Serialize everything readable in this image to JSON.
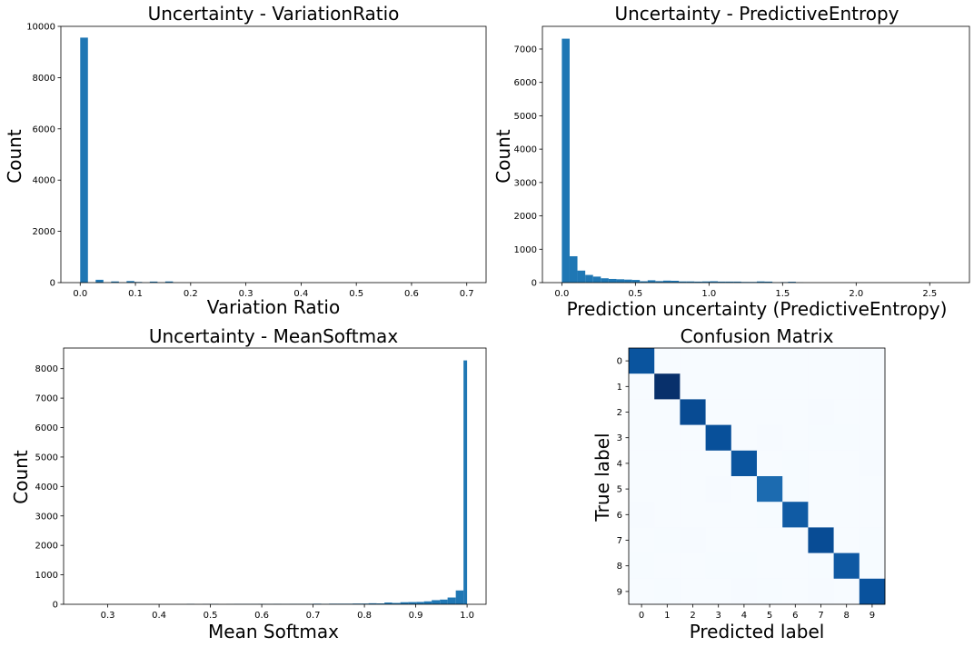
{
  "chart_data": [
    {
      "type": "bar",
      "title": "Uncertainty - VariationRatio",
      "xlabel": "Variation Ratio",
      "ylabel": "Count",
      "xlim": [
        -0.035,
        0.735
      ],
      "ylim": [
        0,
        10000
      ],
      "xticks": [
        0.0,
        0.1,
        0.2,
        0.3,
        0.4,
        0.5,
        0.6,
        0.7
      ],
      "xtick_labels": [
        "0.0",
        "0.1",
        "0.2",
        "0.3",
        "0.4",
        "0.5",
        "0.6",
        "0.7"
      ],
      "yticks": [
        0,
        2000,
        4000,
        6000,
        8000,
        10000
      ],
      "ytick_labels": [
        "0",
        "2000",
        "4000",
        "6000",
        "8000",
        "10000"
      ],
      "bins": [
        {
          "x0": 0.0,
          "x1": 0.014,
          "count": 9560
        },
        {
          "x0": 0.028,
          "x1": 0.042,
          "count": 110
        },
        {
          "x0": 0.056,
          "x1": 0.07,
          "count": 45
        },
        {
          "x0": 0.084,
          "x1": 0.098,
          "count": 60
        },
        {
          "x0": 0.098,
          "x1": 0.112,
          "count": 25
        },
        {
          "x0": 0.126,
          "x1": 0.14,
          "count": 40
        },
        {
          "x0": 0.154,
          "x1": 0.168,
          "count": 45
        }
      ]
    },
    {
      "type": "bar",
      "title": "Uncertainty - PredictiveEntropy",
      "xlabel": "Prediction uncertainty (PredictiveEntropy)",
      "ylabel": "Count",
      "xlim": [
        -0.132,
        2.77
      ],
      "ylim": [
        0,
        7680
      ],
      "xticks": [
        0.0,
        0.5,
        1.0,
        1.5,
        2.0,
        2.5
      ],
      "xtick_labels": [
        "0.0",
        "0.5",
        "1.0",
        "1.5",
        "2.0",
        "2.5"
      ],
      "yticks": [
        0,
        1000,
        2000,
        3000,
        4000,
        5000,
        6000,
        7000
      ],
      "ytick_labels": [
        "0",
        "1000",
        "2000",
        "3000",
        "4000",
        "5000",
        "6000",
        "7000"
      ],
      "bins": [
        {
          "x0": 0.0,
          "x1": 0.053,
          "count": 7310
        },
        {
          "x0": 0.053,
          "x1": 0.106,
          "count": 790
        },
        {
          "x0": 0.106,
          "x1": 0.159,
          "count": 360
        },
        {
          "x0": 0.159,
          "x1": 0.212,
          "count": 230
        },
        {
          "x0": 0.212,
          "x1": 0.265,
          "count": 180
        },
        {
          "x0": 0.265,
          "x1": 0.318,
          "count": 130
        },
        {
          "x0": 0.318,
          "x1": 0.371,
          "count": 110
        },
        {
          "x0": 0.371,
          "x1": 0.424,
          "count": 100
        },
        {
          "x0": 0.424,
          "x1": 0.477,
          "count": 90
        },
        {
          "x0": 0.477,
          "x1": 0.53,
          "count": 80
        },
        {
          "x0": 0.53,
          "x1": 0.583,
          "count": 40
        },
        {
          "x0": 0.583,
          "x1": 0.636,
          "count": 70
        },
        {
          "x0": 0.636,
          "x1": 0.689,
          "count": 45
        },
        {
          "x0": 0.689,
          "x1": 0.742,
          "count": 60
        },
        {
          "x0": 0.742,
          "x1": 0.795,
          "count": 55
        },
        {
          "x0": 0.795,
          "x1": 0.848,
          "count": 35
        },
        {
          "x0": 0.848,
          "x1": 0.901,
          "count": 35
        },
        {
          "x0": 0.901,
          "x1": 0.954,
          "count": 30
        },
        {
          "x0": 0.954,
          "x1": 1.007,
          "count": 35
        },
        {
          "x0": 1.007,
          "x1": 1.06,
          "count": 40
        },
        {
          "x0": 1.06,
          "x1": 1.113,
          "count": 30
        },
        {
          "x0": 1.113,
          "x1": 1.166,
          "count": 30
        },
        {
          "x0": 1.166,
          "x1": 1.219,
          "count": 30
        },
        {
          "x0": 1.219,
          "x1": 1.272,
          "count": 20
        },
        {
          "x0": 1.272,
          "x1": 1.325,
          "count": 20
        },
        {
          "x0": 1.325,
          "x1": 1.378,
          "count": 35
        },
        {
          "x0": 1.378,
          "x1": 1.431,
          "count": 30
        },
        {
          "x0": 1.431,
          "x1": 1.484,
          "count": 5
        },
        {
          "x0": 1.484,
          "x1": 1.537,
          "count": 15
        },
        {
          "x0": 1.537,
          "x1": 1.59,
          "count": 25
        },
        {
          "x0": 1.59,
          "x1": 1.643,
          "count": 5
        }
      ]
    },
    {
      "type": "bar",
      "title": "Uncertainty - MeanSoftmax",
      "xlabel": "Mean Softmax",
      "ylabel": "Count",
      "xlim": [
        0.214,
        1.037
      ],
      "ylim": [
        0,
        8700
      ],
      "xticks": [
        0.3,
        0.4,
        0.5,
        0.6,
        0.7,
        0.8,
        0.9,
        1.0
      ],
      "xtick_labels": [
        "0.3",
        "0.4",
        "0.5",
        "0.6",
        "0.7",
        "0.8",
        "0.9",
        "1.0"
      ],
      "yticks": [
        0,
        1000,
        2000,
        3000,
        4000,
        5000,
        6000,
        7000,
        8000
      ],
      "ytick_labels": [
        "0",
        "1000",
        "2000",
        "3000",
        "4000",
        "5000",
        "6000",
        "7000",
        "8000"
      ],
      "bins": [
        {
          "x0": 0.454,
          "x1": 0.469,
          "count": 10
        },
        {
          "x0": 0.485,
          "x1": 0.5,
          "count": 8
        },
        {
          "x0": 0.5,
          "x1": 0.516,
          "count": 10
        },
        {
          "x0": 0.531,
          "x1": 0.546,
          "count": 5
        },
        {
          "x0": 0.546,
          "x1": 0.562,
          "count": 10
        },
        {
          "x0": 0.562,
          "x1": 0.577,
          "count": 10
        },
        {
          "x0": 0.577,
          "x1": 0.593,
          "count": 10
        },
        {
          "x0": 0.593,
          "x1": 0.608,
          "count": 15
        },
        {
          "x0": 0.608,
          "x1": 0.623,
          "count": 10
        },
        {
          "x0": 0.623,
          "x1": 0.639,
          "count": 15
        },
        {
          "x0": 0.639,
          "x1": 0.654,
          "count": 10
        },
        {
          "x0": 0.654,
          "x1": 0.67,
          "count": 15
        },
        {
          "x0": 0.67,
          "x1": 0.685,
          "count": 15
        },
        {
          "x0": 0.685,
          "x1": 0.7,
          "count": 15
        },
        {
          "x0": 0.7,
          "x1": 0.716,
          "count": 20
        },
        {
          "x0": 0.716,
          "x1": 0.731,
          "count": 15
        },
        {
          "x0": 0.731,
          "x1": 0.747,
          "count": 20
        },
        {
          "x0": 0.747,
          "x1": 0.762,
          "count": 20
        },
        {
          "x0": 0.762,
          "x1": 0.777,
          "count": 20
        },
        {
          "x0": 0.777,
          "x1": 0.793,
          "count": 25
        },
        {
          "x0": 0.793,
          "x1": 0.808,
          "count": 25
        },
        {
          "x0": 0.808,
          "x1": 0.824,
          "count": 35
        },
        {
          "x0": 0.824,
          "x1": 0.839,
          "count": 30
        },
        {
          "x0": 0.839,
          "x1": 0.854,
          "count": 60
        },
        {
          "x0": 0.854,
          "x1": 0.87,
          "count": 45
        },
        {
          "x0": 0.87,
          "x1": 0.885,
          "count": 70
        },
        {
          "x0": 0.885,
          "x1": 0.901,
          "count": 75
        },
        {
          "x0": 0.901,
          "x1": 0.916,
          "count": 80
        },
        {
          "x0": 0.916,
          "x1": 0.931,
          "count": 100
        },
        {
          "x0": 0.931,
          "x1": 0.947,
          "count": 140
        },
        {
          "x0": 0.947,
          "x1": 0.962,
          "count": 160
        },
        {
          "x0": 0.962,
          "x1": 0.978,
          "count": 230
        },
        {
          "x0": 0.978,
          "x1": 0.993,
          "count": 470
        },
        {
          "x0": 0.993,
          "x1": 1.0,
          "count": 8280
        }
      ]
    },
    {
      "type": "heatmap",
      "title": "Confusion Matrix",
      "xlabel": "Predicted label",
      "ylabel": "True label",
      "colormap": "Blues",
      "xtick_labels": [
        "0",
        "1",
        "2",
        "3",
        "4",
        "5",
        "6",
        "7",
        "8",
        "9"
      ],
      "ytick_labels": [
        "0",
        "1",
        "2",
        "3",
        "4",
        "5",
        "6",
        "7",
        "8",
        "9"
      ],
      "matrix": [
        [
          975,
          0,
          1,
          0,
          0,
          1,
          2,
          1,
          0,
          0
        ],
        [
          0,
          1130,
          2,
          0,
          0,
          0,
          1,
          1,
          1,
          0
        ],
        [
          2,
          1,
          1015,
          2,
          1,
          0,
          1,
          8,
          2,
          0
        ],
        [
          0,
          0,
          2,
          995,
          0,
          5,
          0,
          4,
          3,
          1
        ],
        [
          0,
          0,
          1,
          0,
          970,
          0,
          3,
          1,
          1,
          6
        ],
        [
          2,
          0,
          0,
          6,
          1,
          875,
          4,
          1,
          2,
          1
        ],
        [
          6,
          2,
          0,
          0,
          2,
          3,
          943,
          0,
          2,
          0
        ],
        [
          1,
          3,
          8,
          1,
          1,
          0,
          0,
          1010,
          1,
          3
        ],
        [
          4,
          0,
          2,
          3,
          3,
          2,
          2,
          3,
          952,
          3
        ],
        [
          2,
          3,
          0,
          2,
          7,
          3,
          0,
          6,
          2,
          984
        ]
      ]
    }
  ],
  "colors": {
    "bar": "#1f77b4",
    "cmap_low": "#f7fbff",
    "cmap_high": "#08306b"
  }
}
